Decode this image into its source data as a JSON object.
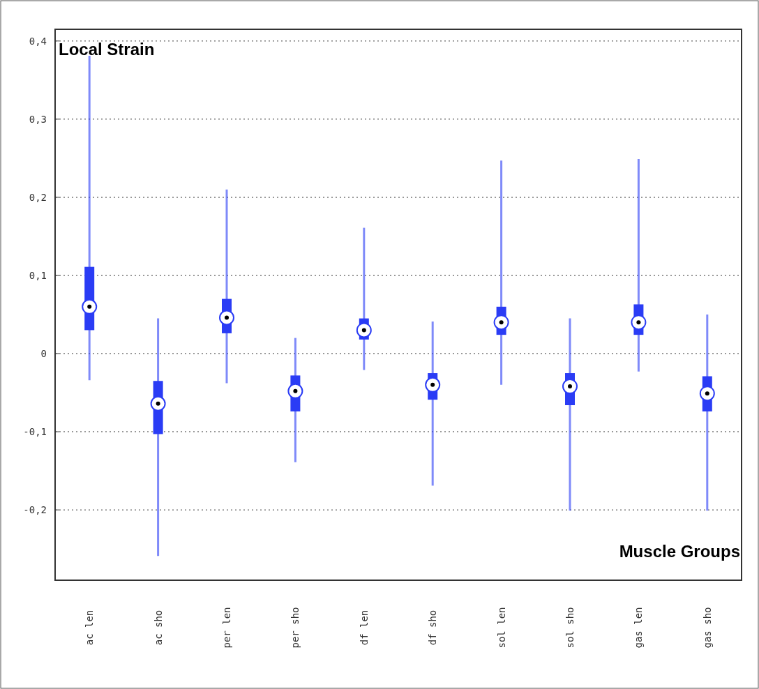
{
  "chart_data": {
    "type": "box",
    "categories": [
      "ac len",
      "ac sho",
      "per len",
      "per sho",
      "df len",
      "df sho",
      "sol len",
      "sol sho",
      "gas len",
      "gas sho"
    ],
    "series": [
      {
        "color": "#2a3cf5",
        "boxes": [
          {
            "low": -0.034,
            "q1": 0.03,
            "median": 0.06,
            "q3": 0.111,
            "high": 0.381
          },
          {
            "low": -0.259,
            "q1": -0.103,
            "median": -0.064,
            "q3": -0.035,
            "high": 0.045
          },
          {
            "low": -0.038,
            "q1": 0.026,
            "median": 0.046,
            "q3": 0.07,
            "high": 0.21
          },
          {
            "low": -0.139,
            "q1": -0.074,
            "median": -0.048,
            "q3": -0.028,
            "high": 0.02
          },
          {
            "low": -0.021,
            "q1": 0.018,
            "median": 0.03,
            "q3": 0.045,
            "high": 0.161
          },
          {
            "low": -0.169,
            "q1": -0.059,
            "median": -0.04,
            "q3": -0.025,
            "high": 0.041
          },
          {
            "low": -0.04,
            "q1": 0.024,
            "median": 0.04,
            "q3": 0.06,
            "high": 0.247
          },
          {
            "low": -0.201,
            "q1": -0.066,
            "median": -0.042,
            "q3": -0.025,
            "high": 0.045
          },
          {
            "low": -0.023,
            "q1": 0.024,
            "median": 0.04,
            "q3": 0.063,
            "high": 0.249
          },
          {
            "low": -0.201,
            "q1": -0.074,
            "median": -0.051,
            "q3": -0.029,
            "high": 0.05
          }
        ]
      }
    ],
    "ylim": [
      -0.29,
      0.415
    ],
    "yticks": [
      {
        "value": -0.2,
        "label": "-0,2"
      },
      {
        "value": -0.1,
        "label": "-0,1"
      },
      0,
      {
        "value": 0.1,
        "label": "0,1"
      },
      {
        "value": 0.2,
        "label": "0,2"
      },
      {
        "value": 0.3,
        "label": "0,3"
      },
      {
        "value": 0.4,
        "label": "0,4"
      }
    ],
    "grid": "y",
    "annotations": [
      "Local Strain",
      "Muscle Groups"
    ]
  }
}
